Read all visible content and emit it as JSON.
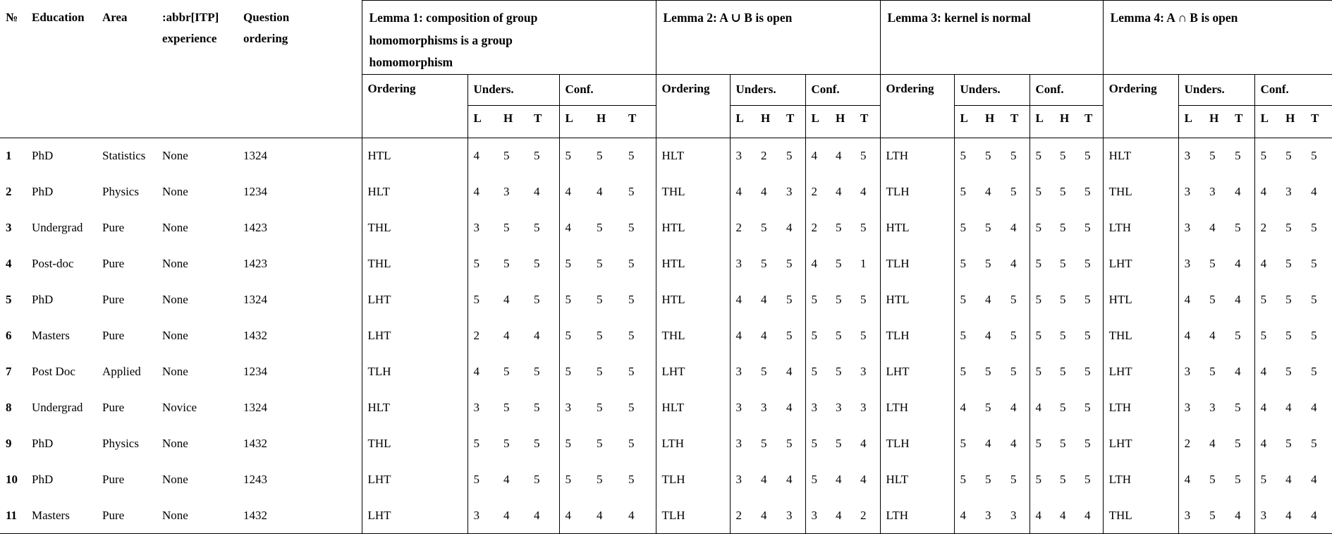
{
  "table": {
    "left_columns": [
      {
        "key": "num",
        "label": "№"
      },
      {
        "key": "education",
        "label": "Education"
      },
      {
        "key": "area",
        "label": "Area"
      },
      {
        "key": "experience",
        "label": ":abbr[ITP]\nexperience"
      },
      {
        "key": "question_ordering",
        "label": "Question\nordering"
      }
    ],
    "lemma_groups": [
      {
        "title": "Lemma 1: composition of group homomorphisms is a group homomorphism"
      },
      {
        "title": "Lemma 2: A ∪ B is open"
      },
      {
        "title": "Lemma 3: kernel is normal"
      },
      {
        "title": "Lemma 4: A ∩ B is open"
      }
    ],
    "subheaders": {
      "ordering": "Ordering",
      "understanding": "Unders.",
      "confidence": "Conf.",
      "scale_letters": [
        "L",
        "H",
        "T"
      ]
    },
    "rows": [
      {
        "num": "1",
        "education": "PhD",
        "area": "Statistics",
        "experience": "None",
        "question_ordering": "1324",
        "lemmas": [
          {
            "ordering": "HTL",
            "unders": [
              4,
              5,
              5
            ],
            "conf": [
              5,
              5,
              5
            ]
          },
          {
            "ordering": "HLT",
            "unders": [
              3,
              2,
              5
            ],
            "conf": [
              4,
              4,
              5
            ]
          },
          {
            "ordering": "LTH",
            "unders": [
              5,
              5,
              5
            ],
            "conf": [
              5,
              5,
              5
            ]
          },
          {
            "ordering": "HLT",
            "unders": [
              3,
              5,
              5
            ],
            "conf": [
              5,
              5,
              5
            ]
          }
        ]
      },
      {
        "num": "2",
        "education": "PhD",
        "area": "Physics",
        "experience": "None",
        "question_ordering": "1234",
        "lemmas": [
          {
            "ordering": "HLT",
            "unders": [
              4,
              3,
              4
            ],
            "conf": [
              4,
              4,
              5
            ]
          },
          {
            "ordering": "THL",
            "unders": [
              4,
              4,
              3
            ],
            "conf": [
              2,
              4,
              4
            ]
          },
          {
            "ordering": "TLH",
            "unders": [
              5,
              4,
              5
            ],
            "conf": [
              5,
              5,
              5
            ]
          },
          {
            "ordering": "THL",
            "unders": [
              3,
              3,
              4
            ],
            "conf": [
              4,
              3,
              4
            ]
          }
        ]
      },
      {
        "num": "3",
        "education": "Undergrad",
        "area": "Pure",
        "experience": "None",
        "question_ordering": "1423",
        "lemmas": [
          {
            "ordering": "THL",
            "unders": [
              3,
              5,
              5
            ],
            "conf": [
              4,
              5,
              5
            ]
          },
          {
            "ordering": "HTL",
            "unders": [
              2,
              5,
              4
            ],
            "conf": [
              2,
              5,
              5
            ]
          },
          {
            "ordering": "HTL",
            "unders": [
              5,
              5,
              4
            ],
            "conf": [
              5,
              5,
              5
            ]
          },
          {
            "ordering": "LTH",
            "unders": [
              3,
              4,
              5
            ],
            "conf": [
              2,
              5,
              5
            ]
          }
        ]
      },
      {
        "num": "4",
        "education": "Post-doc",
        "area": "Pure",
        "experience": "None",
        "question_ordering": "1423",
        "lemmas": [
          {
            "ordering": "THL",
            "unders": [
              5,
              5,
              5
            ],
            "conf": [
              5,
              5,
              5
            ]
          },
          {
            "ordering": "HTL",
            "unders": [
              3,
              5,
              5
            ],
            "conf": [
              4,
              5,
              1
            ]
          },
          {
            "ordering": "TLH",
            "unders": [
              5,
              5,
              4
            ],
            "conf": [
              5,
              5,
              5
            ]
          },
          {
            "ordering": "LHT",
            "unders": [
              3,
              5,
              4
            ],
            "conf": [
              4,
              5,
              5
            ]
          }
        ]
      },
      {
        "num": "5",
        "education": "PhD",
        "area": "Pure",
        "experience": "None",
        "question_ordering": "1324",
        "lemmas": [
          {
            "ordering": "LHT",
            "unders": [
              5,
              4,
              5
            ],
            "conf": [
              5,
              5,
              5
            ]
          },
          {
            "ordering": "HTL",
            "unders": [
              4,
              4,
              5
            ],
            "conf": [
              5,
              5,
              5
            ]
          },
          {
            "ordering": "HTL",
            "unders": [
              5,
              4,
              5
            ],
            "conf": [
              5,
              5,
              5
            ]
          },
          {
            "ordering": "HTL",
            "unders": [
              4,
              5,
              4
            ],
            "conf": [
              5,
              5,
              5
            ]
          }
        ]
      },
      {
        "num": "6",
        "education": "Masters",
        "area": "Pure",
        "experience": "None",
        "question_ordering": "1432",
        "lemmas": [
          {
            "ordering": "LHT",
            "unders": [
              2,
              4,
              4
            ],
            "conf": [
              5,
              5,
              5
            ]
          },
          {
            "ordering": "THL",
            "unders": [
              4,
              4,
              5
            ],
            "conf": [
              5,
              5,
              5
            ]
          },
          {
            "ordering": "TLH",
            "unders": [
              5,
              4,
              5
            ],
            "conf": [
              5,
              5,
              5
            ]
          },
          {
            "ordering": "THL",
            "unders": [
              4,
              4,
              5
            ],
            "conf": [
              5,
              5,
              5
            ]
          }
        ]
      },
      {
        "num": "7",
        "education": "Post Doc",
        "area": "Applied",
        "experience": "None",
        "question_ordering": "1234",
        "lemmas": [
          {
            "ordering": "TLH",
            "unders": [
              4,
              5,
              5
            ],
            "conf": [
              5,
              5,
              5
            ]
          },
          {
            "ordering": "LHT",
            "unders": [
              3,
              5,
              4
            ],
            "conf": [
              5,
              5,
              3
            ]
          },
          {
            "ordering": "LHT",
            "unders": [
              5,
              5,
              5
            ],
            "conf": [
              5,
              5,
              5
            ]
          },
          {
            "ordering": "LHT",
            "unders": [
              3,
              5,
              4
            ],
            "conf": [
              4,
              5,
              5
            ]
          }
        ]
      },
      {
        "num": "8",
        "education": "Undergrad",
        "area": "Pure",
        "experience": "Novice",
        "question_ordering": "1324",
        "lemmas": [
          {
            "ordering": "HLT",
            "unders": [
              3,
              5,
              5
            ],
            "conf": [
              3,
              5,
              5
            ]
          },
          {
            "ordering": "HLT",
            "unders": [
              3,
              3,
              4
            ],
            "conf": [
              3,
              3,
              3
            ]
          },
          {
            "ordering": "LTH",
            "unders": [
              4,
              5,
              4
            ],
            "conf": [
              4,
              5,
              5
            ]
          },
          {
            "ordering": "LTH",
            "unders": [
              3,
              3,
              5
            ],
            "conf": [
              4,
              4,
              4
            ]
          }
        ]
      },
      {
        "num": "9",
        "education": "PhD",
        "area": "Physics",
        "experience": "None",
        "question_ordering": "1432",
        "lemmas": [
          {
            "ordering": "THL",
            "unders": [
              5,
              5,
              5
            ],
            "conf": [
              5,
              5,
              5
            ]
          },
          {
            "ordering": "LTH",
            "unders": [
              3,
              5,
              5
            ],
            "conf": [
              5,
              5,
              4
            ]
          },
          {
            "ordering": "TLH",
            "unders": [
              5,
              4,
              4
            ],
            "conf": [
              5,
              5,
              5
            ]
          },
          {
            "ordering": "LHT",
            "unders": [
              2,
              4,
              5
            ],
            "conf": [
              4,
              5,
              5
            ]
          }
        ]
      },
      {
        "num": "10",
        "education": "PhD",
        "area": "Pure",
        "experience": "None",
        "question_ordering": "1243",
        "lemmas": [
          {
            "ordering": "LHT",
            "unders": [
              5,
              4,
              5
            ],
            "conf": [
              5,
              5,
              5
            ]
          },
          {
            "ordering": "TLH",
            "unders": [
              3,
              4,
              4
            ],
            "conf": [
              5,
              4,
              4
            ]
          },
          {
            "ordering": "HLT",
            "unders": [
              5,
              5,
              5
            ],
            "conf": [
              5,
              5,
              5
            ]
          },
          {
            "ordering": "LTH",
            "unders": [
              4,
              5,
              5
            ],
            "conf": [
              5,
              4,
              4
            ]
          }
        ]
      },
      {
        "num": "11",
        "education": "Masters",
        "area": "Pure",
        "experience": "None",
        "question_ordering": "1432",
        "lemmas": [
          {
            "ordering": "LHT",
            "unders": [
              3,
              4,
              4
            ],
            "conf": [
              4,
              4,
              4
            ]
          },
          {
            "ordering": "TLH",
            "unders": [
              2,
              4,
              3
            ],
            "conf": [
              3,
              4,
              2
            ]
          },
          {
            "ordering": "LTH",
            "unders": [
              4,
              3,
              3
            ],
            "conf": [
              4,
              4,
              4
            ]
          },
          {
            "ordering": "THL",
            "unders": [
              3,
              5,
              4
            ],
            "conf": [
              3,
              4,
              4
            ]
          }
        ]
      }
    ]
  }
}
